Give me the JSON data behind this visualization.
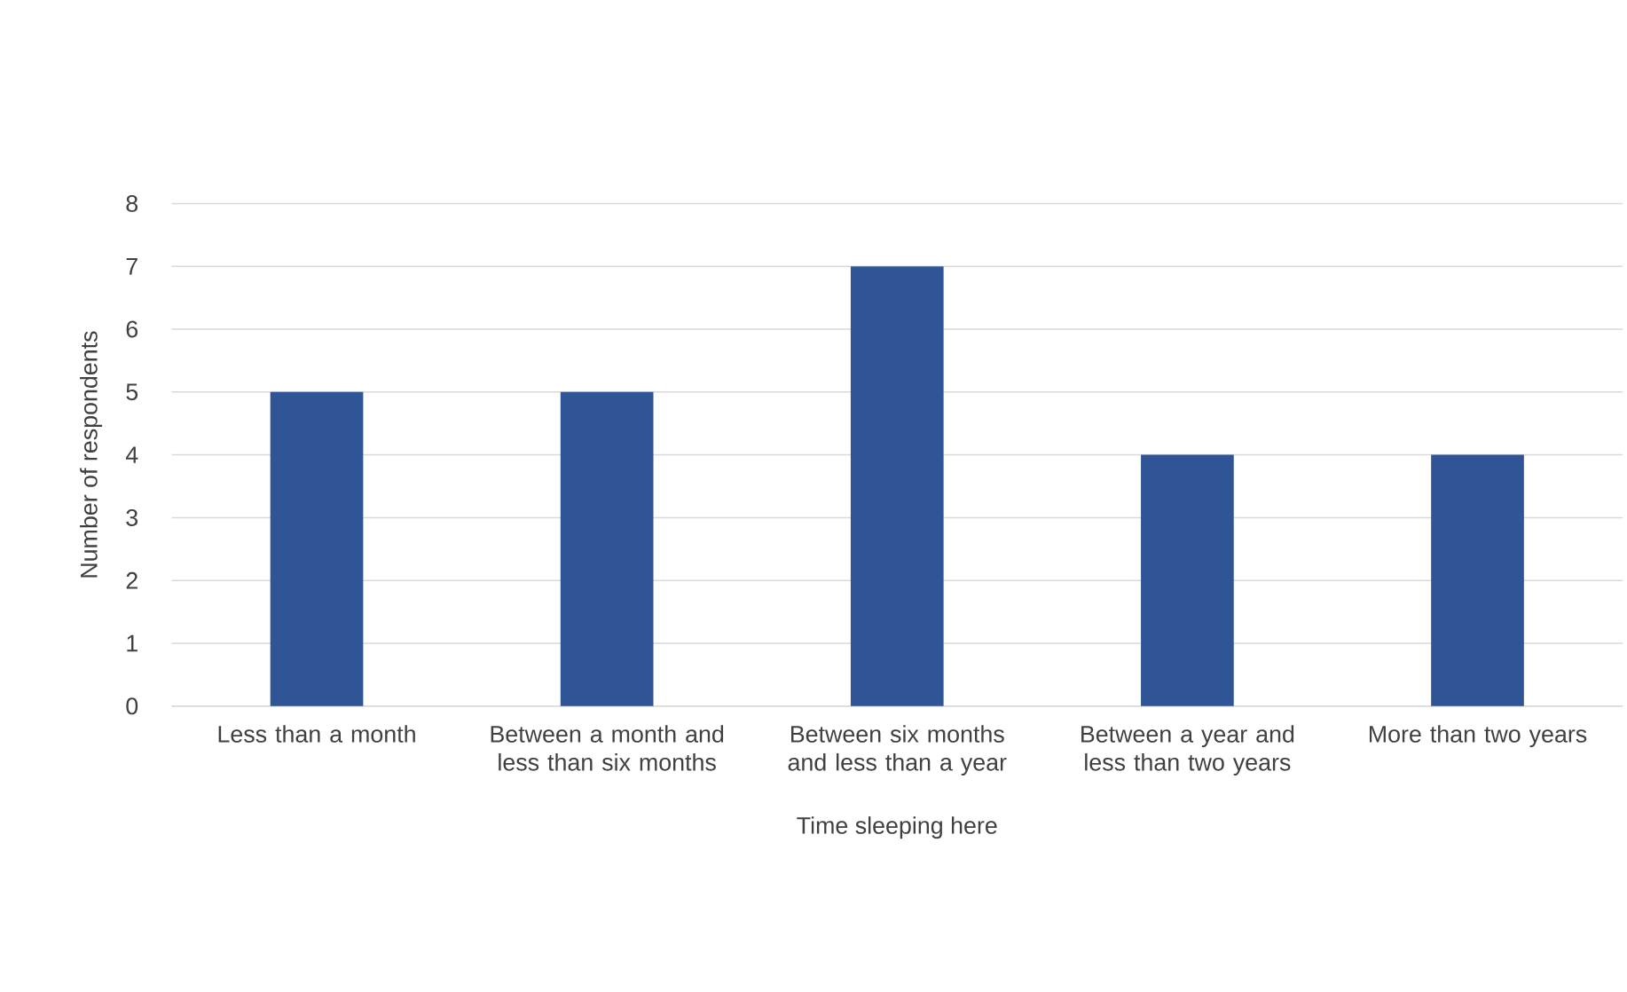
{
  "chart_data": {
    "type": "bar",
    "xlabel": "Time sleeping here",
    "ylabel": "Number of respondents",
    "categories": [
      "Less than a month",
      "Between a month and less than six months",
      "Between six months and less than a year",
      "Between a year and less than two years",
      "More than two years"
    ],
    "values": [
      5,
      5,
      7,
      4,
      4
    ],
    "color": "#2f5597",
    "ylim": [
      0,
      8
    ],
    "yticks": [
      0,
      1,
      2,
      3,
      4,
      5,
      6,
      7,
      8
    ],
    "grid": "y"
  }
}
